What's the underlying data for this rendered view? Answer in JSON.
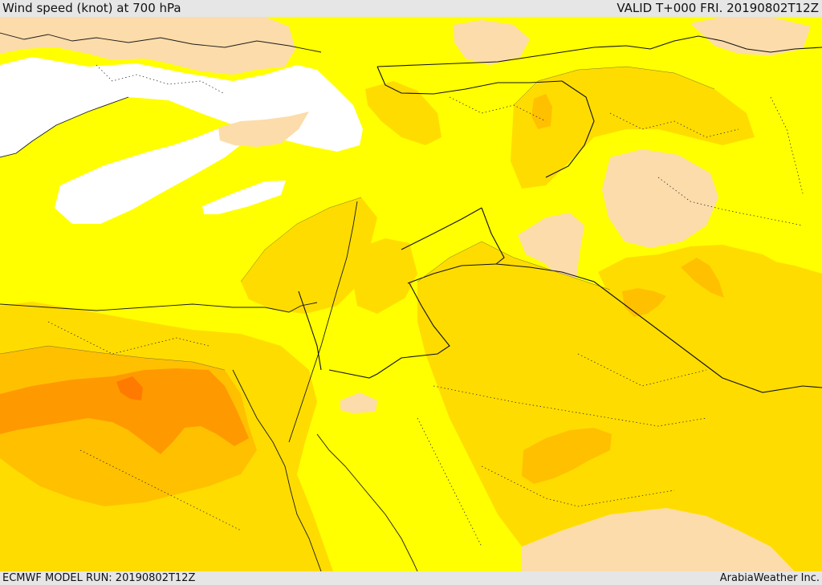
{
  "header": {
    "title": "Wind speed (knot) at 700 hPa",
    "valid": "VALID T+000 FRI. 20190802T12Z"
  },
  "footer": {
    "model_run": "ECMWF MODEL RUN: 20190802T12Z",
    "credit": "ArabiaWeather Inc."
  },
  "map": {
    "variable": "wind speed",
    "level": "700 hPa",
    "units": "knot",
    "palette": {
      "calm": "#ffffff",
      "light": "#fcdcaa",
      "moderate": "#ffff00",
      "fresh": "#ffdc00",
      "strong": "#ffc000",
      "very_strong": "#ff9900",
      "core": "#ff7a00"
    }
  }
}
